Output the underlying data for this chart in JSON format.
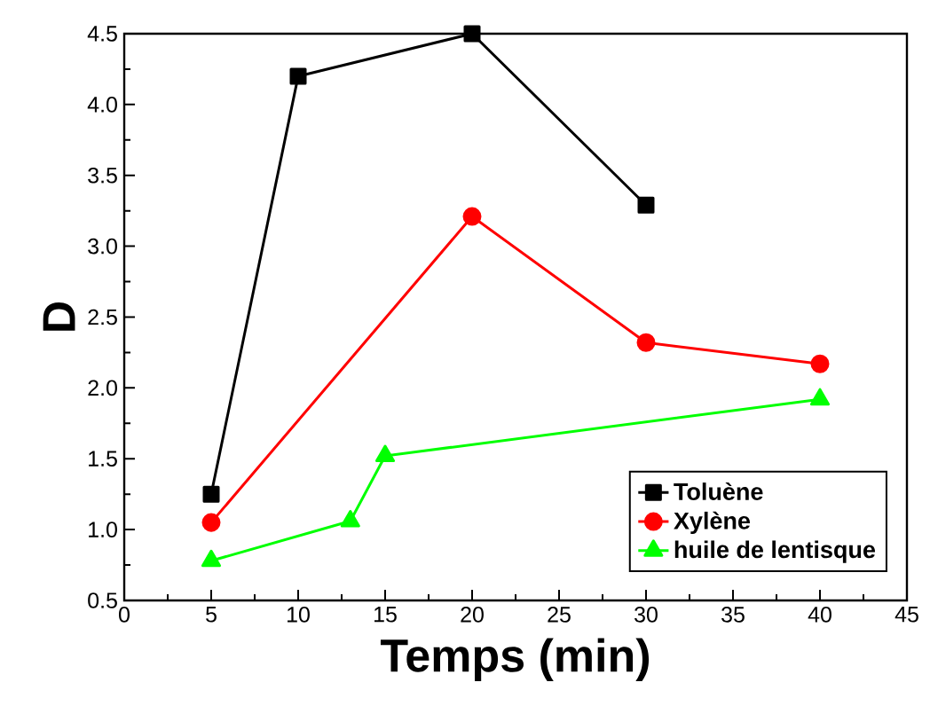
{
  "chart_data": {
    "type": "line",
    "xlabel": "Temps (min)",
    "ylabel": "D",
    "xlim": [
      0,
      45
    ],
    "ylim": [
      0.5,
      4.5
    ],
    "xticks": [
      0,
      5,
      10,
      15,
      20,
      25,
      30,
      35,
      40,
      45
    ],
    "yticks": [
      {
        "value": 0.5,
        "label": "0.5"
      },
      {
        "value": 1,
        "label": "1.0"
      },
      {
        "value": 1.5,
        "label": "1.5"
      },
      {
        "value": 2,
        "label": "2.0"
      },
      {
        "value": 2.5,
        "label": "2.5"
      },
      {
        "value": 3,
        "label": "3.0"
      },
      {
        "value": 3.5,
        "label": "3.5"
      },
      {
        "value": 4,
        "label": "4.0"
      },
      {
        "value": 4.5,
        "label": "4.5"
      }
    ],
    "legend": "bottom right",
    "line_style": "solid",
    "series": [
      {
        "name": "Toluène",
        "color": "#000000",
        "marker": "square",
        "x": [
          5,
          10,
          20,
          30
        ],
        "values": [
          1.25,
          4.2,
          4.5,
          3.29
        ]
      },
      {
        "name": "Xylène",
        "color": "#ff0000",
        "marker": "circle",
        "x": [
          5,
          20,
          30,
          40
        ],
        "values": [
          1.05,
          3.21,
          2.32,
          2.17
        ]
      },
      {
        "name": "huile de lentisque",
        "color": "#00ff00",
        "marker": "triangle",
        "x": [
          5,
          13,
          15,
          40
        ],
        "values": [
          0.78,
          1.06,
          1.52,
          1.92
        ]
      }
    ]
  }
}
